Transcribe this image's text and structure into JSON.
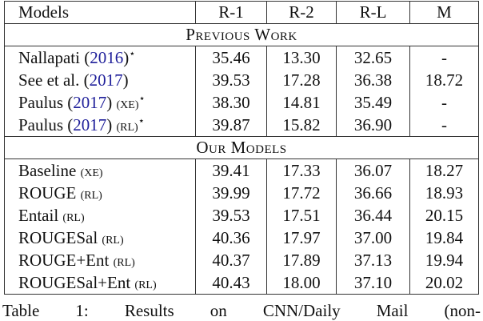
{
  "columns": [
    "Models",
    "R-1",
    "R-2",
    "R-L",
    "M"
  ],
  "sections": [
    {
      "title": "Previous Work",
      "rows": [
        {
          "name": "Nallapati (",
          "cite": "2016",
          "close": ")",
          "tag": "",
          "star": "⋆",
          "r1": "35.46",
          "r2": "13.30",
          "rl": "32.65",
          "m": "-"
        },
        {
          "name": "See et al. (",
          "cite": "2017",
          "close": ")",
          "tag": "",
          "star": "",
          "r1": "39.53",
          "r2": "17.28",
          "rl": "36.38",
          "m": "18.72"
        },
        {
          "name": "Paulus (",
          "cite": "2017",
          "close": ") ",
          "tag": "(XE)",
          "star": "⋆",
          "r1": "38.30",
          "r2": "14.81",
          "rl": "35.49",
          "m": "-"
        },
        {
          "name": "Paulus (",
          "cite": "2017",
          "close": ") ",
          "tag": "(RL)",
          "star": "⋆",
          "r1": "39.87",
          "r2": "15.82",
          "rl": "36.90",
          "m": "-"
        }
      ]
    },
    {
      "title": "Our Models",
      "rows": [
        {
          "name": "Baseline ",
          "tag": "(XE)",
          "r1": "39.41",
          "r2": "17.33",
          "rl": "36.07",
          "m": "18.27"
        },
        {
          "name": "ROUGE ",
          "tag": "(RL)",
          "r1": "39.99",
          "r2": "17.72",
          "rl": "36.66",
          "m": "18.93"
        },
        {
          "name": "Entail ",
          "tag": "(RL)",
          "r1": "39.53",
          "r2": "17.51",
          "rl": "36.44",
          "m": "20.15"
        },
        {
          "name": "ROUGESal ",
          "tag": "(RL)",
          "r1": "40.36",
          "r2": "17.97",
          "rl": "37.00",
          "m": "19.84"
        },
        {
          "name": "ROUGE+Ent ",
          "tag": "(RL)",
          "r1": "40.37",
          "r2": "17.89",
          "rl": "37.13",
          "m": "19.94"
        },
        {
          "name": "ROUGESal+Ent ",
          "tag": "(RL)",
          "r1": "40.43",
          "r2": "18.00",
          "rl": "37.10",
          "m": "20.02"
        }
      ]
    }
  ],
  "caption_words": [
    "Table",
    "1:",
    "Results",
    "on",
    "CNN/Daily",
    "Mail",
    "(non-"
  ],
  "colors": {
    "citation": "#1f1f9a"
  }
}
